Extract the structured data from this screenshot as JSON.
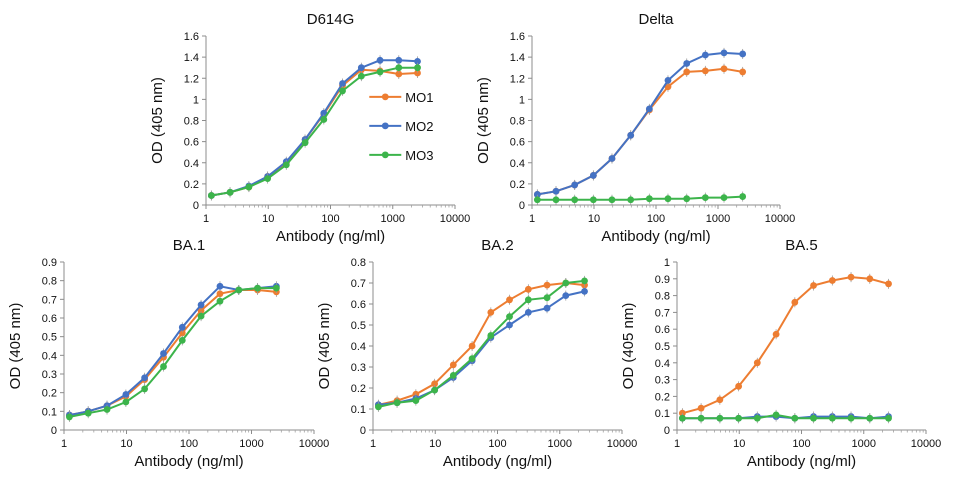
{
  "chart_data": [
    {
      "type": "line",
      "title": "D614G",
      "xlabel": "Antibody (ng/ml)",
      "ylabel": "OD (405 nm)",
      "xscale": "log",
      "xlim": [
        1,
        10000
      ],
      "ylim": [
        0,
        1.6
      ],
      "xticks": [
        "1",
        "10",
        "100",
        "1000",
        "10000"
      ],
      "yticks": [
        "0",
        "0.2",
        "0.4",
        "0.6",
        "0.8",
        "1",
        "1.2",
        "1.4",
        "1.6"
      ],
      "legend": "center-right",
      "x": [
        1.22,
        2.44,
        4.88,
        9.77,
        19.5,
        39.1,
        78.1,
        156,
        313,
        625,
        1250,
        2500
      ],
      "series": [
        {
          "name": "MO1",
          "color": "#ed7d31",
          "values": [
            0.09,
            0.12,
            0.17,
            0.27,
            0.4,
            0.62,
            0.86,
            1.13,
            1.28,
            1.27,
            1.24,
            1.25
          ]
        },
        {
          "name": "MO2",
          "color": "#4472c4",
          "values": [
            0.09,
            0.12,
            0.18,
            0.27,
            0.41,
            0.62,
            0.87,
            1.15,
            1.3,
            1.37,
            1.37,
            1.36
          ]
        },
        {
          "name": "MO3",
          "color": "#3cb44b",
          "values": [
            0.09,
            0.12,
            0.17,
            0.25,
            0.38,
            0.59,
            0.81,
            1.08,
            1.22,
            1.26,
            1.3,
            1.3
          ]
        }
      ]
    },
    {
      "type": "line",
      "title": "Delta",
      "xlabel": "Antibody (ng/ml)",
      "ylabel": "OD (405 nm)",
      "xscale": "log",
      "xlim": [
        1,
        10000
      ],
      "ylim": [
        0,
        1.6
      ],
      "xticks": [
        "1",
        "10",
        "100",
        "1000",
        "10000"
      ],
      "yticks": [
        "0",
        "0.2",
        "0.4",
        "0.6",
        "0.8",
        "1",
        "1.2",
        "1.4",
        "1.6"
      ],
      "x": [
        1.22,
        2.44,
        4.88,
        9.77,
        19.5,
        39.1,
        78.1,
        156,
        313,
        625,
        1250,
        2500
      ],
      "series": [
        {
          "name": "MO1",
          "color": "#ed7d31",
          "values": [
            0.1,
            0.13,
            0.19,
            0.28,
            0.44,
            0.66,
            0.9,
            1.12,
            1.26,
            1.27,
            1.29,
            1.26
          ]
        },
        {
          "name": "MO2",
          "color": "#4472c4",
          "values": [
            0.1,
            0.13,
            0.19,
            0.28,
            0.44,
            0.66,
            0.91,
            1.18,
            1.34,
            1.42,
            1.44,
            1.43
          ]
        },
        {
          "name": "MO3",
          "color": "#3cb44b",
          "values": [
            0.05,
            0.05,
            0.05,
            0.05,
            0.05,
            0.05,
            0.06,
            0.06,
            0.06,
            0.07,
            0.07,
            0.08
          ]
        }
      ]
    },
    {
      "type": "line",
      "title": "BA.1",
      "xlabel": "Antibody (ng/ml)",
      "ylabel": "OD (405 nm)",
      "xscale": "log",
      "xlim": [
        1,
        10000
      ],
      "ylim": [
        0,
        0.9
      ],
      "xticks": [
        "1",
        "10",
        "100",
        "1000",
        "10000"
      ],
      "yticks": [
        "0",
        "0.1",
        "0.2",
        "0.3",
        "0.4",
        "0.5",
        "0.6",
        "0.7",
        "0.8",
        "0.9"
      ],
      "x": [
        1.22,
        2.44,
        4.88,
        9.77,
        19.5,
        39.1,
        78.1,
        156,
        313,
        625,
        1250,
        2500
      ],
      "series": [
        {
          "name": "MO1",
          "color": "#ed7d31",
          "values": [
            0.08,
            0.1,
            0.13,
            0.18,
            0.27,
            0.39,
            0.52,
            0.64,
            0.73,
            0.75,
            0.75,
            0.74
          ]
        },
        {
          "name": "MO2",
          "color": "#4472c4",
          "values": [
            0.08,
            0.1,
            0.13,
            0.19,
            0.28,
            0.41,
            0.55,
            0.67,
            0.77,
            0.75,
            0.76,
            0.77
          ]
        },
        {
          "name": "MO3",
          "color": "#3cb44b",
          "values": [
            0.07,
            0.09,
            0.11,
            0.15,
            0.22,
            0.34,
            0.48,
            0.61,
            0.69,
            0.75,
            0.76,
            0.76
          ]
        }
      ]
    },
    {
      "type": "line",
      "title": "BA.2",
      "xlabel": "Antibody (ng/ml)",
      "ylabel": "OD (405 nm)",
      "xscale": "log",
      "xlim": [
        1,
        10000
      ],
      "ylim": [
        0,
        0.8
      ],
      "xticks": [
        "1",
        "10",
        "100",
        "1000",
        "10000"
      ],
      "yticks": [
        "0",
        "0.1",
        "0.2",
        "0.3",
        "0.4",
        "0.5",
        "0.6",
        "0.7",
        "0.8"
      ],
      "x": [
        1.22,
        2.44,
        4.88,
        9.77,
        19.5,
        39.1,
        78.1,
        156,
        313,
        625,
        1250,
        2500
      ],
      "series": [
        {
          "name": "MO1",
          "color": "#ed7d31",
          "values": [
            0.12,
            0.14,
            0.17,
            0.22,
            0.31,
            0.4,
            0.56,
            0.62,
            0.67,
            0.69,
            0.7,
            0.69
          ]
        },
        {
          "name": "MO2",
          "color": "#4472c4",
          "values": [
            0.12,
            0.13,
            0.15,
            0.19,
            0.25,
            0.33,
            0.44,
            0.5,
            0.56,
            0.58,
            0.64,
            0.66
          ]
        },
        {
          "name": "MO3",
          "color": "#3cb44b",
          "values": [
            0.11,
            0.13,
            0.14,
            0.19,
            0.26,
            0.34,
            0.45,
            0.54,
            0.62,
            0.63,
            0.7,
            0.71
          ]
        }
      ]
    },
    {
      "type": "line",
      "title": "BA.5",
      "xlabel": "Antibody (ng/ml)",
      "ylabel": "OD (405 nm)",
      "xscale": "log",
      "xlim": [
        1,
        10000
      ],
      "ylim": [
        0,
        1
      ],
      "xticks": [
        "1",
        "10",
        "100",
        "1000",
        "10000"
      ],
      "yticks": [
        "0",
        "0.1",
        "0.2",
        "0.3",
        "0.4",
        "0.5",
        "0.6",
        "0.7",
        "0.8",
        "0.9",
        "1"
      ],
      "x": [
        1.22,
        2.44,
        4.88,
        9.77,
        19.5,
        39.1,
        78.1,
        156,
        313,
        625,
        1250,
        2500
      ],
      "series": [
        {
          "name": "MO1",
          "color": "#ed7d31",
          "values": [
            0.1,
            0.13,
            0.18,
            0.26,
            0.4,
            0.57,
            0.76,
            0.86,
            0.89,
            0.91,
            0.9,
            0.87
          ]
        },
        {
          "name": "MO2",
          "color": "#4472c4",
          "values": [
            0.07,
            0.07,
            0.07,
            0.07,
            0.08,
            0.08,
            0.07,
            0.08,
            0.08,
            0.08,
            0.07,
            0.08
          ]
        },
        {
          "name": "MO3",
          "color": "#3cb44b",
          "values": [
            0.07,
            0.07,
            0.07,
            0.07,
            0.07,
            0.09,
            0.07,
            0.07,
            0.07,
            0.07,
            0.07,
            0.07
          ]
        }
      ]
    }
  ]
}
